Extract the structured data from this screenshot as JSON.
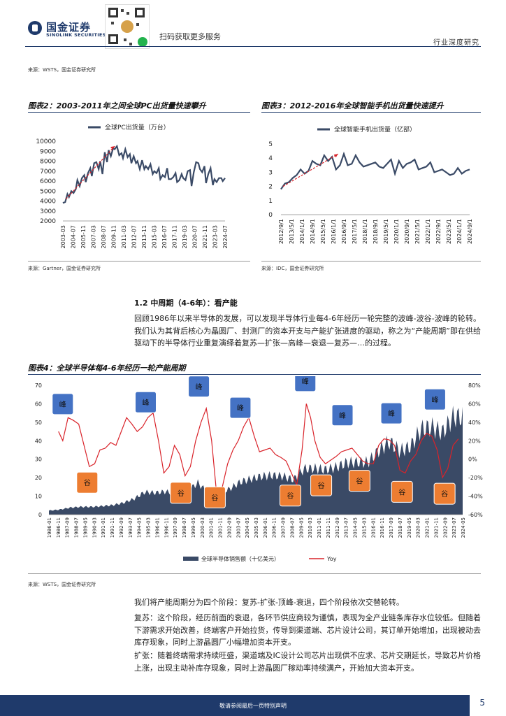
{
  "header": {
    "brand_cn": "国金证券",
    "brand_en": "SINOLINK SECURITIES",
    "scan_text": "扫码获取更多服务",
    "report_type": "行业深度研究"
  },
  "top_source": "来源：WSTS，国金证券研究所",
  "figure2": {
    "title": "图表2：2003-2011年之间全球PC出货量快速攀升",
    "source": "来源：Gartner，国金证券研究所"
  },
  "figure3": {
    "title": "图表3：2012-2016年全球智能手机出货量快速提升",
    "source": "来源：IDC，国金证券研究所"
  },
  "section": {
    "heading": "1.2 中周期（4-6年）：看产能",
    "paragraph": "回顾1986年以来半导体的发展，可以发现半导体行业每4-6年经历一轮完整的波峰-波谷-波峰的轮转。我们认为其背后核心为晶圆厂、封测厂的资本开支与产能扩张进度的驱动，称之为“产能周期”即在供给驱动下的半导体行业重复演绎着复苏—扩张—高峰—衰退—复苏—…的过程。"
  },
  "figure4": {
    "title": "图表4：全球半导体每4-6年经历一轮产能周期",
    "source": "来源：WSTS，国金证券研究所"
  },
  "body": {
    "p1": "我们将产能周期分为四个阶段：复苏-扩张-顶峰-衰退，四个阶段依次交替轮转。",
    "p2": "复苏：这个阶段，经历前面的衰退，各环节供应商较为谨慎，表现为全产业链条库存水位较低。但随着下游需求开始改善，终端客户开始拉货，传导到渠道端、芯片设计公司，其订单开始增加，出现被动去库存现象，同时上游晶圆厂小幅增加资本开支。",
    "p3": "扩张：随着终端需求持续旺盛，渠道端及IC设计公司芯片出现供不应求、芯片交期延长，导致芯片价格上涨，出现主动补库存现象，同时上游晶圆厂稼动率持续满产，开始加大资本开支。"
  },
  "footer": {
    "disclaimer": "敬请参阅最后一页特别声明",
    "page": "5"
  },
  "chart_data": [
    {
      "type": "line",
      "title": "",
      "legend": [
        "全球PC出货量（万台）"
      ],
      "categories": [
        "2003-03",
        "2004-07",
        "2005-11",
        "2007-03",
        "2008-07",
        "2009-11",
        "2011-03",
        "2012-07",
        "2013-11",
        "2015-03",
        "2016-07",
        "2017-11",
        "2019-03",
        "2020-07",
        "2021-11",
        "2023-03",
        "2024-07"
      ],
      "y_ticks": [
        2000,
        3000,
        4000,
        5000,
        6000,
        7000,
        8000,
        9000,
        10000
      ],
      "ylim": [
        2000,
        10000
      ],
      "x": [
        2003.2,
        2003.5,
        2003.8,
        2004.0,
        2004.3,
        2004.6,
        2004.9,
        2005.1,
        2005.4,
        2005.7,
        2006.0,
        2006.2,
        2006.5,
        2006.8,
        2007.0,
        2007.3,
        2007.6,
        2007.9,
        2008.1,
        2008.4,
        2008.7,
        2009.0,
        2009.2,
        2009.5,
        2009.8,
        2010.0,
        2010.3,
        2010.6,
        2010.9,
        2011.1,
        2011.4,
        2011.7,
        2012.0,
        2012.2,
        2012.5,
        2012.8,
        2013.0,
        2013.3,
        2013.6,
        2013.9,
        2014.1,
        2014.4,
        2014.7,
        2015.0,
        2015.2,
        2015.5,
        2015.8,
        2016.0,
        2016.3,
        2016.6,
        2016.9,
        2017.1,
        2017.4,
        2017.7,
        2018.0,
        2018.2,
        2018.5,
        2018.8,
        2019.0,
        2019.3,
        2019.6,
        2019.9,
        2020.1,
        2020.4,
        2020.7,
        2021.0,
        2021.2,
        2021.5,
        2021.8,
        2022.0,
        2022.3,
        2022.6,
        2022.9,
        2023.1,
        2023.4,
        2023.7,
        2024.0,
        2024.2,
        2024.5
      ],
      "values": [
        3800,
        3900,
        4700,
        4400,
        5000,
        4800,
        5200,
        6100,
        5500,
        6300,
        6600,
        5900,
        6800,
        7300,
        6500,
        7800,
        7900,
        7200,
        8000,
        6700,
        8900,
        7900,
        9100,
        8500,
        9300,
        9200,
        9500,
        8600,
        8800,
        8300,
        9200,
        8400,
        8700,
        7800,
        8500,
        7800,
        8000,
        7200,
        8100,
        7200,
        7500,
        7200,
        7700,
        6700,
        7000,
        6800,
        7300,
        6200,
        6600,
        6400,
        7300,
        6200,
        6200,
        6400,
        6800,
        5900,
        6100,
        6700,
        6300,
        6100,
        7000,
        7100,
        5500,
        6900,
        7900,
        7800,
        7200,
        6900,
        7500,
        5800,
        6700,
        7300,
        5600,
        6200,
        5900,
        6300,
        6300,
        6000,
        6300
      ]
    },
    {
      "type": "line",
      "title": "",
      "legend": [
        "全球智能手机出货量（亿部）"
      ],
      "categories": [
        "2012/9/1",
        "2013/5/1",
        "2014/1/1",
        "2014/9/1",
        "2015/5/1",
        "2016/1/1",
        "2016/9/1",
        "2017/5/1",
        "2018/1/1",
        "2018/9/1",
        "2019/5/1",
        "2020/1/1",
        "2020/9/1",
        "2021/5/1",
        "2022/1/1",
        "2022/9/1",
        "2023/5/1",
        "2024/1/1",
        "2024/9/1"
      ],
      "y_ticks": [
        0,
        1,
        2,
        3,
        4,
        5
      ],
      "ylim": [
        0,
        5
      ],
      "x": [
        2012.67,
        2012.92,
        2013.17,
        2013.42,
        2013.67,
        2013.92,
        2014.17,
        2014.42,
        2014.67,
        2014.92,
        2015.17,
        2015.42,
        2015.67,
        2015.92,
        2016.17,
        2016.42,
        2016.67,
        2016.92,
        2017.17,
        2017.42,
        2017.67,
        2017.92,
        2018.17,
        2018.42,
        2018.67,
        2018.92,
        2019.17,
        2019.42,
        2019.67,
        2019.92,
        2020.17,
        2020.42,
        2020.67,
        2020.92,
        2021.17,
        2021.42,
        2021.67,
        2021.92,
        2022.17,
        2022.42,
        2022.67,
        2022.92,
        2023.17,
        2023.42,
        2023.67,
        2023.92,
        2024.17,
        2024.42,
        2024.67
      ],
      "values": [
        1.8,
        2.2,
        2.3,
        2.6,
        2.8,
        3.2,
        2.9,
        3.1,
        3.8,
        3.6,
        3.5,
        4.2,
        3.8,
        4.1,
        3.2,
        3.5,
        4.3,
        3.5,
        3.6,
        4.2,
        3.7,
        3.4,
        3.5,
        3.6,
        3.7,
        3.4,
        3.3,
        3.6,
        3.9,
        2.9,
        3.8,
        3.3,
        3.6,
        3.7,
        3.9,
        3.2,
        3.3,
        3.4,
        3.7,
        3.0,
        3.1,
        3.2,
        3.0,
        2.8,
        2.9,
        3.3,
        2.9,
        3.1,
        3.2
      ]
    },
    {
      "type": "bar+line",
      "title": "",
      "legend": [
        "全球半导体销售额（十亿美元）",
        "Yoy"
      ],
      "categories": [
        "1986-01",
        "1986-11",
        "1987-09",
        "1988-07",
        "1989-05",
        "1990-03",
        "1991-01",
        "1991-11",
        "1992-09",
        "1993-07",
        "1994-05",
        "1995-03",
        "1996-01",
        "1996-11",
        "1997-09",
        "1998-07",
        "1999-05",
        "2000-03",
        "2001-01",
        "2001-11",
        "2002-09",
        "2003-07",
        "2004-05",
        "2005-03",
        "2006-01",
        "2006-11",
        "2007-09",
        "2008-07",
        "2009-05",
        "2010-03",
        "2011-01",
        "2011-11",
        "2012-09",
        "2013-07",
        "2014-05",
        "2015-03",
        "2016-01",
        "2016-11",
        "2017-09",
        "2018-07",
        "2019-05",
        "2020-03",
        "2021-01",
        "2021-11",
        "2022-09",
        "2023-07",
        "2024-05"
      ],
      "y_left_ticks": [
        0,
        10,
        20,
        30,
        40,
        50,
        60,
        70
      ],
      "y_right_ticks": [
        "-60%",
        "-40%",
        "-20%",
        "0%",
        "20%",
        "40%",
        "60%",
        "80%"
      ],
      "ylim_left": [
        0,
        70
      ],
      "ylim_right": [
        -60,
        80
      ],
      "annual_x": [
        1986,
        1987,
        1988,
        1989,
        1990,
        1991,
        1992,
        1993,
        1994,
        1995,
        1996,
        1997,
        1998,
        1999,
        2000,
        2001,
        2002,
        2003,
        2004,
        2005,
        2006,
        2007,
        2008,
        2009,
        2010,
        2011,
        2012,
        2013,
        2014,
        2015,
        2016,
        2017,
        2018,
        2019,
        2020,
        2021,
        2022,
        2023,
        2024
      ],
      "sales": [
        2.2,
        2.7,
        3.8,
        4.2,
        4.2,
        4.6,
        5.1,
        6.4,
        8.5,
        12.2,
        11.8,
        12.5,
        10.9,
        12.6,
        17.2,
        11.6,
        11.7,
        13.9,
        17.7,
        19.3,
        20.7,
        21.2,
        20.8,
        18.9,
        24.8,
        25.0,
        24.3,
        25.6,
        28.1,
        28.3,
        28.4,
        34.5,
        39.5,
        34.4,
        36.8,
        46.3,
        47.4,
        44.3,
        52.8
      ],
      "yoy_x": [
        1986.9,
        1987.3,
        1987.8,
        1988.3,
        1988.8,
        1989.3,
        1989.8,
        1990.3,
        1990.8,
        1991.3,
        1991.8,
        1992.3,
        1992.8,
        1993.3,
        1993.8,
        1994.3,
        1994.8,
        1995.3,
        1995.8,
        1996.3,
        1996.8,
        1997.3,
        1997.8,
        1998.3,
        1998.8,
        1999.3,
        1999.8,
        2000.3,
        2000.8,
        2001.3,
        2001.8,
        2002.3,
        2002.8,
        2003.3,
        2003.8,
        2004.3,
        2004.8,
        2005.3,
        2005.8,
        2006.3,
        2006.8,
        2007.3,
        2007.8,
        2008.3,
        2008.8,
        2009.3,
        2009.8,
        2010.2,
        2010.6,
        2011.0,
        2011.5,
        2012.0,
        2012.5,
        2013.0,
        2013.5,
        2014.0,
        2014.5,
        2015.0,
        2015.5,
        2016.0,
        2016.5,
        2017.0,
        2017.5,
        2018.0,
        2018.5,
        2019.0,
        2019.5,
        2020.0,
        2020.5,
        2021.0,
        2021.5,
        2022.0,
        2022.5,
        2023.0,
        2023.5,
        2024.0,
        2024.5
      ],
      "yoy": [
        30,
        20,
        45,
        42,
        38,
        15,
        -8,
        -5,
        10,
        12,
        18,
        15,
        30,
        45,
        38,
        30,
        35,
        45,
        50,
        20,
        -15,
        -8,
        15,
        5,
        -18,
        -8,
        20,
        40,
        55,
        20,
        -42,
        -30,
        -5,
        10,
        20,
        35,
        45,
        25,
        8,
        10,
        12,
        5,
        2,
        -2,
        -15,
        -28,
        10,
        60,
        45,
        20,
        2,
        -5,
        -1,
        3,
        8,
        10,
        12,
        5,
        -2,
        -5,
        -5,
        15,
        22,
        21,
        15,
        -12,
        -15,
        -2,
        5,
        20,
        28,
        25,
        10,
        -20,
        -10,
        15,
        22
      ]
    }
  ]
}
